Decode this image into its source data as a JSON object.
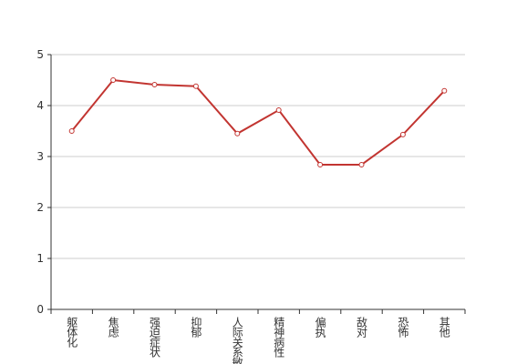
{
  "chart_data": {
    "type": "line",
    "categories": [
      "躯体化",
      "焦虑",
      "强迫症状",
      "抑郁",
      "人际关系敏感",
      "精神病性",
      "偏执",
      "敌对",
      "恐怖",
      "其他"
    ],
    "values": [
      3.5,
      4.5,
      4.41,
      4.38,
      3.45,
      3.91,
      2.84,
      2.84,
      3.43,
      4.29
    ],
    "color": "#c23531",
    "ylim": [
      0,
      5
    ],
    "yticks": [
      0,
      1,
      2,
      3,
      4,
      5
    ],
    "grid": true
  }
}
